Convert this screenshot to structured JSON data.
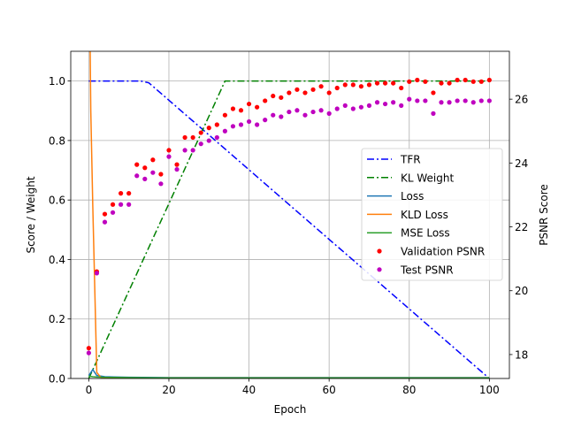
{
  "chart_data": {
    "type": "line",
    "xlabel": "Epoch",
    "ylabel_left": "Score / Weight",
    "ylabel_right": "PSNR Score",
    "xlim": [
      -4.5,
      105
    ],
    "ylim_left": [
      0,
      1.1
    ],
    "ylim_right": [
      17.25,
      27.5
    ],
    "grid": true,
    "legend_position": "center-right",
    "xticks": [
      0,
      20,
      40,
      60,
      80,
      100
    ],
    "yticks_left": [
      0.0,
      0.2,
      0.4,
      0.6,
      0.8,
      1.0
    ],
    "yticks_right": [
      18,
      20,
      22,
      24,
      26
    ],
    "line_series": [
      {
        "name": "TFR",
        "color": "#0000ff",
        "style": "dashdot",
        "axis": "left",
        "x": [
          0,
          13,
          15,
          100
        ],
        "y": [
          1.0,
          1.0,
          0.994,
          0.0
        ]
      },
      {
        "name": "KL Weight",
        "color": "#008000",
        "style": "dashdot",
        "axis": "left",
        "x": [
          0,
          33,
          34,
          100
        ],
        "y": [
          0.0,
          0.97,
          1.0,
          1.0
        ]
      },
      {
        "name": "Loss",
        "color": "#1f77b4",
        "style": "solid",
        "axis": "left",
        "x": [
          0,
          1,
          2,
          4,
          10,
          20,
          40,
          60,
          80,
          100
        ],
        "y": [
          0.01,
          0.03,
          0.01,
          0.006,
          0.004,
          0.003,
          0.003,
          0.003,
          0.003,
          0.003
        ]
      },
      {
        "name": "KLD Loss",
        "color": "#ff7f0e",
        "style": "solid",
        "axis": "left",
        "x": [
          0.2,
          0.5,
          1,
          2,
          3,
          4,
          10,
          20,
          40,
          60,
          80,
          100
        ],
        "y": [
          1.3,
          0.9,
          0.58,
          0.02,
          0.004,
          0.002,
          0.002,
          0.002,
          0.002,
          0.002,
          0.002,
          0.002
        ]
      },
      {
        "name": "MSE Loss",
        "color": "#2ca02c",
        "style": "solid",
        "axis": "left",
        "x": [
          0,
          1,
          2,
          4,
          10,
          20,
          40,
          60,
          80,
          100
        ],
        "y": [
          0.008,
          0.006,
          0.005,
          0.004,
          0.003,
          0.002,
          0.002,
          0.002,
          0.002,
          0.002
        ]
      }
    ],
    "point_series": [
      {
        "name": "Validation PSNR",
        "color": "#ff0000",
        "axis": "right",
        "x": [
          0,
          2,
          4,
          6,
          8,
          10,
          12,
          14,
          16,
          18,
          20,
          22,
          24,
          26,
          28,
          30,
          32,
          34,
          36,
          38,
          40,
          42,
          44,
          46,
          48,
          50,
          52,
          54,
          56,
          58,
          60,
          62,
          64,
          66,
          68,
          70,
          72,
          74,
          76,
          78,
          80,
          82,
          84,
          86,
          88,
          90,
          92,
          94,
          96,
          98,
          100
        ],
        "y": [
          18.2,
          20.6,
          22.4,
          22.7,
          23.05,
          23.05,
          23.95,
          23.85,
          24.1,
          23.65,
          24.4,
          23.95,
          24.8,
          24.8,
          24.95,
          25.1,
          25.2,
          25.5,
          25.7,
          25.65,
          25.85,
          25.75,
          25.95,
          26.1,
          26.05,
          26.2,
          26.3,
          26.2,
          26.3,
          26.4,
          26.2,
          26.35,
          26.45,
          26.45,
          26.4,
          26.45,
          26.5,
          26.5,
          26.5,
          26.35,
          26.55,
          26.6,
          26.55,
          26.2,
          26.5,
          26.5,
          26.6,
          26.6,
          26.55,
          26.55,
          26.6
        ]
      },
      {
        "name": "Test PSNR",
        "color": "#bf00bf",
        "axis": "right",
        "x": [
          0,
          2,
          4,
          6,
          8,
          10,
          12,
          14,
          16,
          18,
          20,
          22,
          24,
          26,
          28,
          30,
          32,
          34,
          36,
          38,
          40,
          42,
          44,
          46,
          48,
          50,
          52,
          54,
          56,
          58,
          60,
          62,
          64,
          66,
          68,
          70,
          72,
          74,
          76,
          78,
          80,
          82,
          84,
          86,
          88,
          90,
          92,
          94,
          96,
          98,
          100
        ],
        "y": [
          18.05,
          20.55,
          22.15,
          22.45,
          22.7,
          22.7,
          23.6,
          23.5,
          23.7,
          23.35,
          24.2,
          23.8,
          24.4,
          24.4,
          24.6,
          24.7,
          24.8,
          25.0,
          25.15,
          25.2,
          25.3,
          25.2,
          25.35,
          25.5,
          25.45,
          25.6,
          25.65,
          25.5,
          25.6,
          25.65,
          25.55,
          25.7,
          25.8,
          25.7,
          25.75,
          25.8,
          25.9,
          25.85,
          25.9,
          25.8,
          26.0,
          25.95,
          25.95,
          25.55,
          25.9,
          25.9,
          25.95,
          25.95,
          25.9,
          25.95,
          25.95
        ]
      }
    ]
  }
}
